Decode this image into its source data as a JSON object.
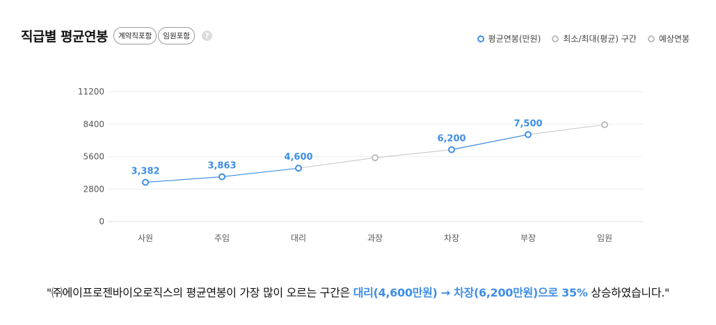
{
  "header": {
    "title": "직급별 평균연봉",
    "badges": [
      "계약직포함",
      "임원포함"
    ],
    "help_icon": "question-icon"
  },
  "legend": {
    "items": [
      "평균연봉(만원)",
      "최소/최대(평균) 구간",
      "예상연봉"
    ]
  },
  "colors": {
    "accent": "#3e8ee5",
    "gray_line": "#cccccc",
    "gray_marker": "#bbbbbb",
    "gridline": "#eeeeee",
    "tick_text": "#555555"
  },
  "chart_data": {
    "type": "line",
    "categories": [
      "사원",
      "주임",
      "대리",
      "과장",
      "차장",
      "부장",
      "임원"
    ],
    "series": [
      {
        "name": "평균연봉(만원)",
        "values": [
          3382,
          3863,
          4600,
          null,
          6200,
          7500,
          null
        ],
        "labels": [
          "3,382",
          "3,863",
          "4,600",
          null,
          "6,200",
          "7,500",
          null
        ]
      },
      {
        "name": "예상연봉",
        "values": [
          null,
          null,
          4600,
          5500,
          6200,
          7500,
          8350
        ]
      }
    ],
    "y_ticks": [
      0,
      2800,
      5600,
      8400,
      11200
    ],
    "y_tick_labels": [
      "0",
      "2800",
      "5600",
      "8400",
      "11200"
    ],
    "ylim": [
      0,
      11200
    ],
    "grid": true,
    "legend_position": "top-right"
  },
  "summary": {
    "prefix": "\"㈜에이프로젠바이오로직스의 평균연봉이 가장 많이 오르는 구간은 ",
    "highlight": "대리(4,600만원) → 차장(6,200만원)으로 35%",
    "suffix": " 상승하였습니다.\""
  }
}
